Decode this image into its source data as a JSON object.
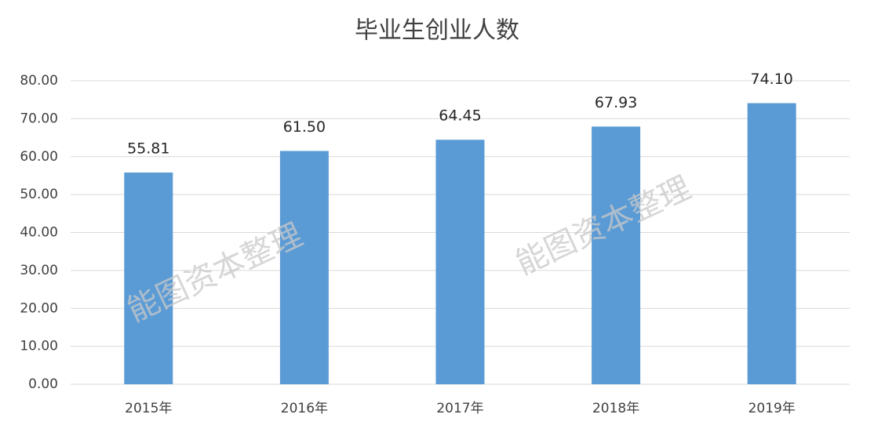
{
  "chart_data": {
    "type": "bar",
    "title": "毕业生创业人数",
    "categories": [
      "2015年",
      "2016年",
      "2017年",
      "2018年",
      "2019年"
    ],
    "values": [
      55.81,
      61.5,
      64.45,
      67.93,
      74.1
    ],
    "value_labels": [
      "55.81",
      "61.50",
      "64.45",
      "67.93",
      "74.10"
    ],
    "color": "#5b9bd5",
    "ylim": [
      0,
      80
    ],
    "yticks": [
      {
        "value": 0,
        "label": "0.00"
      },
      {
        "value": 10,
        "label": "10.00"
      },
      {
        "value": 20,
        "label": "20.00"
      },
      {
        "value": 30,
        "label": "30.00"
      },
      {
        "value": 40,
        "label": "40.00"
      },
      {
        "value": 50,
        "label": "50.00"
      },
      {
        "value": 60,
        "label": "60.00"
      },
      {
        "value": 70,
        "label": "70.00"
      },
      {
        "value": 80,
        "label": "80.00"
      }
    ],
    "grid": true,
    "watermarks": [
      "能图资本整理",
      "能图资本整理"
    ]
  }
}
